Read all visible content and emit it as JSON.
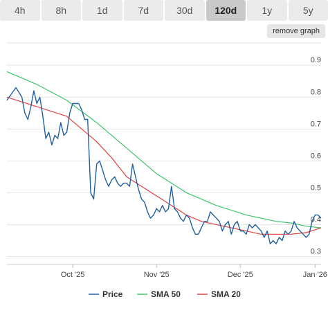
{
  "tabs": [
    {
      "label": "4h"
    },
    {
      "label": "8h"
    },
    {
      "label": "1d"
    },
    {
      "label": "7d"
    },
    {
      "label": "30d"
    },
    {
      "label": "120d",
      "active": true
    },
    {
      "label": "1y"
    },
    {
      "label": "5y"
    }
  ],
  "remove_graph_label": "remove graph",
  "chart_data": {
    "type": "line",
    "title": "",
    "xlabel": "",
    "ylabel": "",
    "ylim": [
      0.275,
      0.97
    ],
    "y_ticks": [
      "0.3",
      "0.4",
      "0.5",
      "0.6",
      "0.7",
      "0.8",
      "0.9"
    ],
    "x_ticks": [
      "Oct '25",
      "Nov '25",
      "Dec '25",
      "Jan '26"
    ],
    "legend_position": "bottom",
    "colors": {
      "Price": "#1f5fa0",
      "SMA 50": "#3cc36b",
      "SMA 20": "#e0403c"
    },
    "series": [
      {
        "name": "Price",
        "points": [
          [
            0,
            0.79
          ],
          [
            3,
            0.83
          ],
          [
            5,
            0.8
          ],
          [
            6,
            0.75
          ],
          [
            7,
            0.73
          ],
          [
            8,
            0.77
          ],
          [
            9,
            0.82
          ],
          [
            10,
            0.78
          ],
          [
            11,
            0.8
          ],
          [
            12,
            0.74
          ],
          [
            13,
            0.67
          ],
          [
            14,
            0.69
          ],
          [
            15,
            0.65
          ],
          [
            16,
            0.68
          ],
          [
            17,
            0.67
          ],
          [
            18,
            0.72
          ],
          [
            19,
            0.68
          ],
          [
            20,
            0.69
          ],
          [
            21,
            0.75
          ],
          [
            22,
            0.78
          ],
          [
            23,
            0.78
          ],
          [
            24,
            0.78
          ],
          [
            25,
            0.76
          ],
          [
            26,
            0.73
          ],
          [
            27,
            0.73
          ],
          [
            28,
            0.5
          ],
          [
            29,
            0.48
          ],
          [
            30,
            0.59
          ],
          [
            31,
            0.6
          ],
          [
            32,
            0.57
          ],
          [
            33,
            0.54
          ],
          [
            34,
            0.52
          ],
          [
            35,
            0.54
          ],
          [
            36,
            0.55
          ],
          [
            37,
            0.53
          ],
          [
            38,
            0.52
          ],
          [
            39,
            0.53
          ],
          [
            40,
            0.53
          ],
          [
            41,
            0.52
          ],
          [
            42,
            0.59
          ],
          [
            43,
            0.55
          ],
          [
            44,
            0.51
          ],
          [
            45,
            0.48
          ],
          [
            46,
            0.47
          ],
          [
            47,
            0.44
          ],
          [
            48,
            0.42
          ],
          [
            49,
            0.43
          ],
          [
            50,
            0.45
          ],
          [
            51,
            0.44
          ],
          [
            52,
            0.46
          ],
          [
            53,
            0.44
          ],
          [
            54,
            0.45
          ],
          [
            55,
            0.52
          ],
          [
            56,
            0.45
          ],
          [
            57,
            0.44
          ],
          [
            58,
            0.42
          ],
          [
            59,
            0.41
          ],
          [
            60,
            0.43
          ],
          [
            61,
            0.42
          ],
          [
            62,
            0.39
          ],
          [
            63,
            0.37
          ],
          [
            64,
            0.37
          ],
          [
            65,
            0.39
          ],
          [
            66,
            0.41
          ],
          [
            67,
            0.41
          ],
          [
            68,
            0.44
          ],
          [
            69,
            0.43
          ],
          [
            70,
            0.42
          ],
          [
            71,
            0.41
          ],
          [
            72,
            0.38
          ],
          [
            73,
            0.4
          ],
          [
            74,
            0.41
          ],
          [
            75,
            0.37
          ],
          [
            76,
            0.4
          ],
          [
            77,
            0.41
          ],
          [
            78,
            0.38
          ],
          [
            79,
            0.38
          ],
          [
            80,
            0.37
          ],
          [
            81,
            0.4
          ],
          [
            82,
            0.39
          ],
          [
            83,
            0.4
          ],
          [
            84,
            0.39
          ],
          [
            85,
            0.38
          ],
          [
            86,
            0.36
          ],
          [
            87,
            0.38
          ],
          [
            88,
            0.34
          ],
          [
            89,
            0.35
          ],
          [
            90,
            0.34
          ],
          [
            91,
            0.36
          ],
          [
            92,
            0.35
          ],
          [
            93,
            0.38
          ],
          [
            94,
            0.37
          ],
          [
            95,
            0.38
          ],
          [
            96,
            0.41
          ],
          [
            97,
            0.39
          ],
          [
            98,
            0.38
          ],
          [
            99,
            0.37
          ],
          [
            100,
            0.36
          ],
          [
            101,
            0.37
          ],
          [
            102,
            0.41
          ],
          [
            103,
            0.43
          ],
          [
            104,
            0.43
          ],
          [
            105,
            0.42
          ]
        ]
      },
      {
        "name": "SMA 50",
        "points": [
          [
            0,
            0.88
          ],
          [
            10,
            0.84
          ],
          [
            20,
            0.79
          ],
          [
            30,
            0.72
          ],
          [
            40,
            0.64
          ],
          [
            50,
            0.56
          ],
          [
            60,
            0.5
          ],
          [
            70,
            0.46
          ],
          [
            80,
            0.43
          ],
          [
            90,
            0.41
          ],
          [
            95,
            0.405
          ],
          [
            100,
            0.395
          ],
          [
            105,
            0.39
          ]
        ]
      },
      {
        "name": "SMA 20",
        "points": [
          [
            0,
            0.8
          ],
          [
            10,
            0.77
          ],
          [
            20,
            0.74
          ],
          [
            25,
            0.7
          ],
          [
            30,
            0.66
          ],
          [
            35,
            0.61
          ],
          [
            40,
            0.55
          ],
          [
            45,
            0.52
          ],
          [
            50,
            0.49
          ],
          [
            55,
            0.46
          ],
          [
            60,
            0.43
          ],
          [
            65,
            0.41
          ],
          [
            70,
            0.4
          ],
          [
            75,
            0.39
          ],
          [
            80,
            0.38
          ],
          [
            85,
            0.37
          ],
          [
            90,
            0.37
          ],
          [
            95,
            0.37
          ],
          [
            100,
            0.375
          ],
          [
            105,
            0.39
          ]
        ]
      }
    ]
  }
}
